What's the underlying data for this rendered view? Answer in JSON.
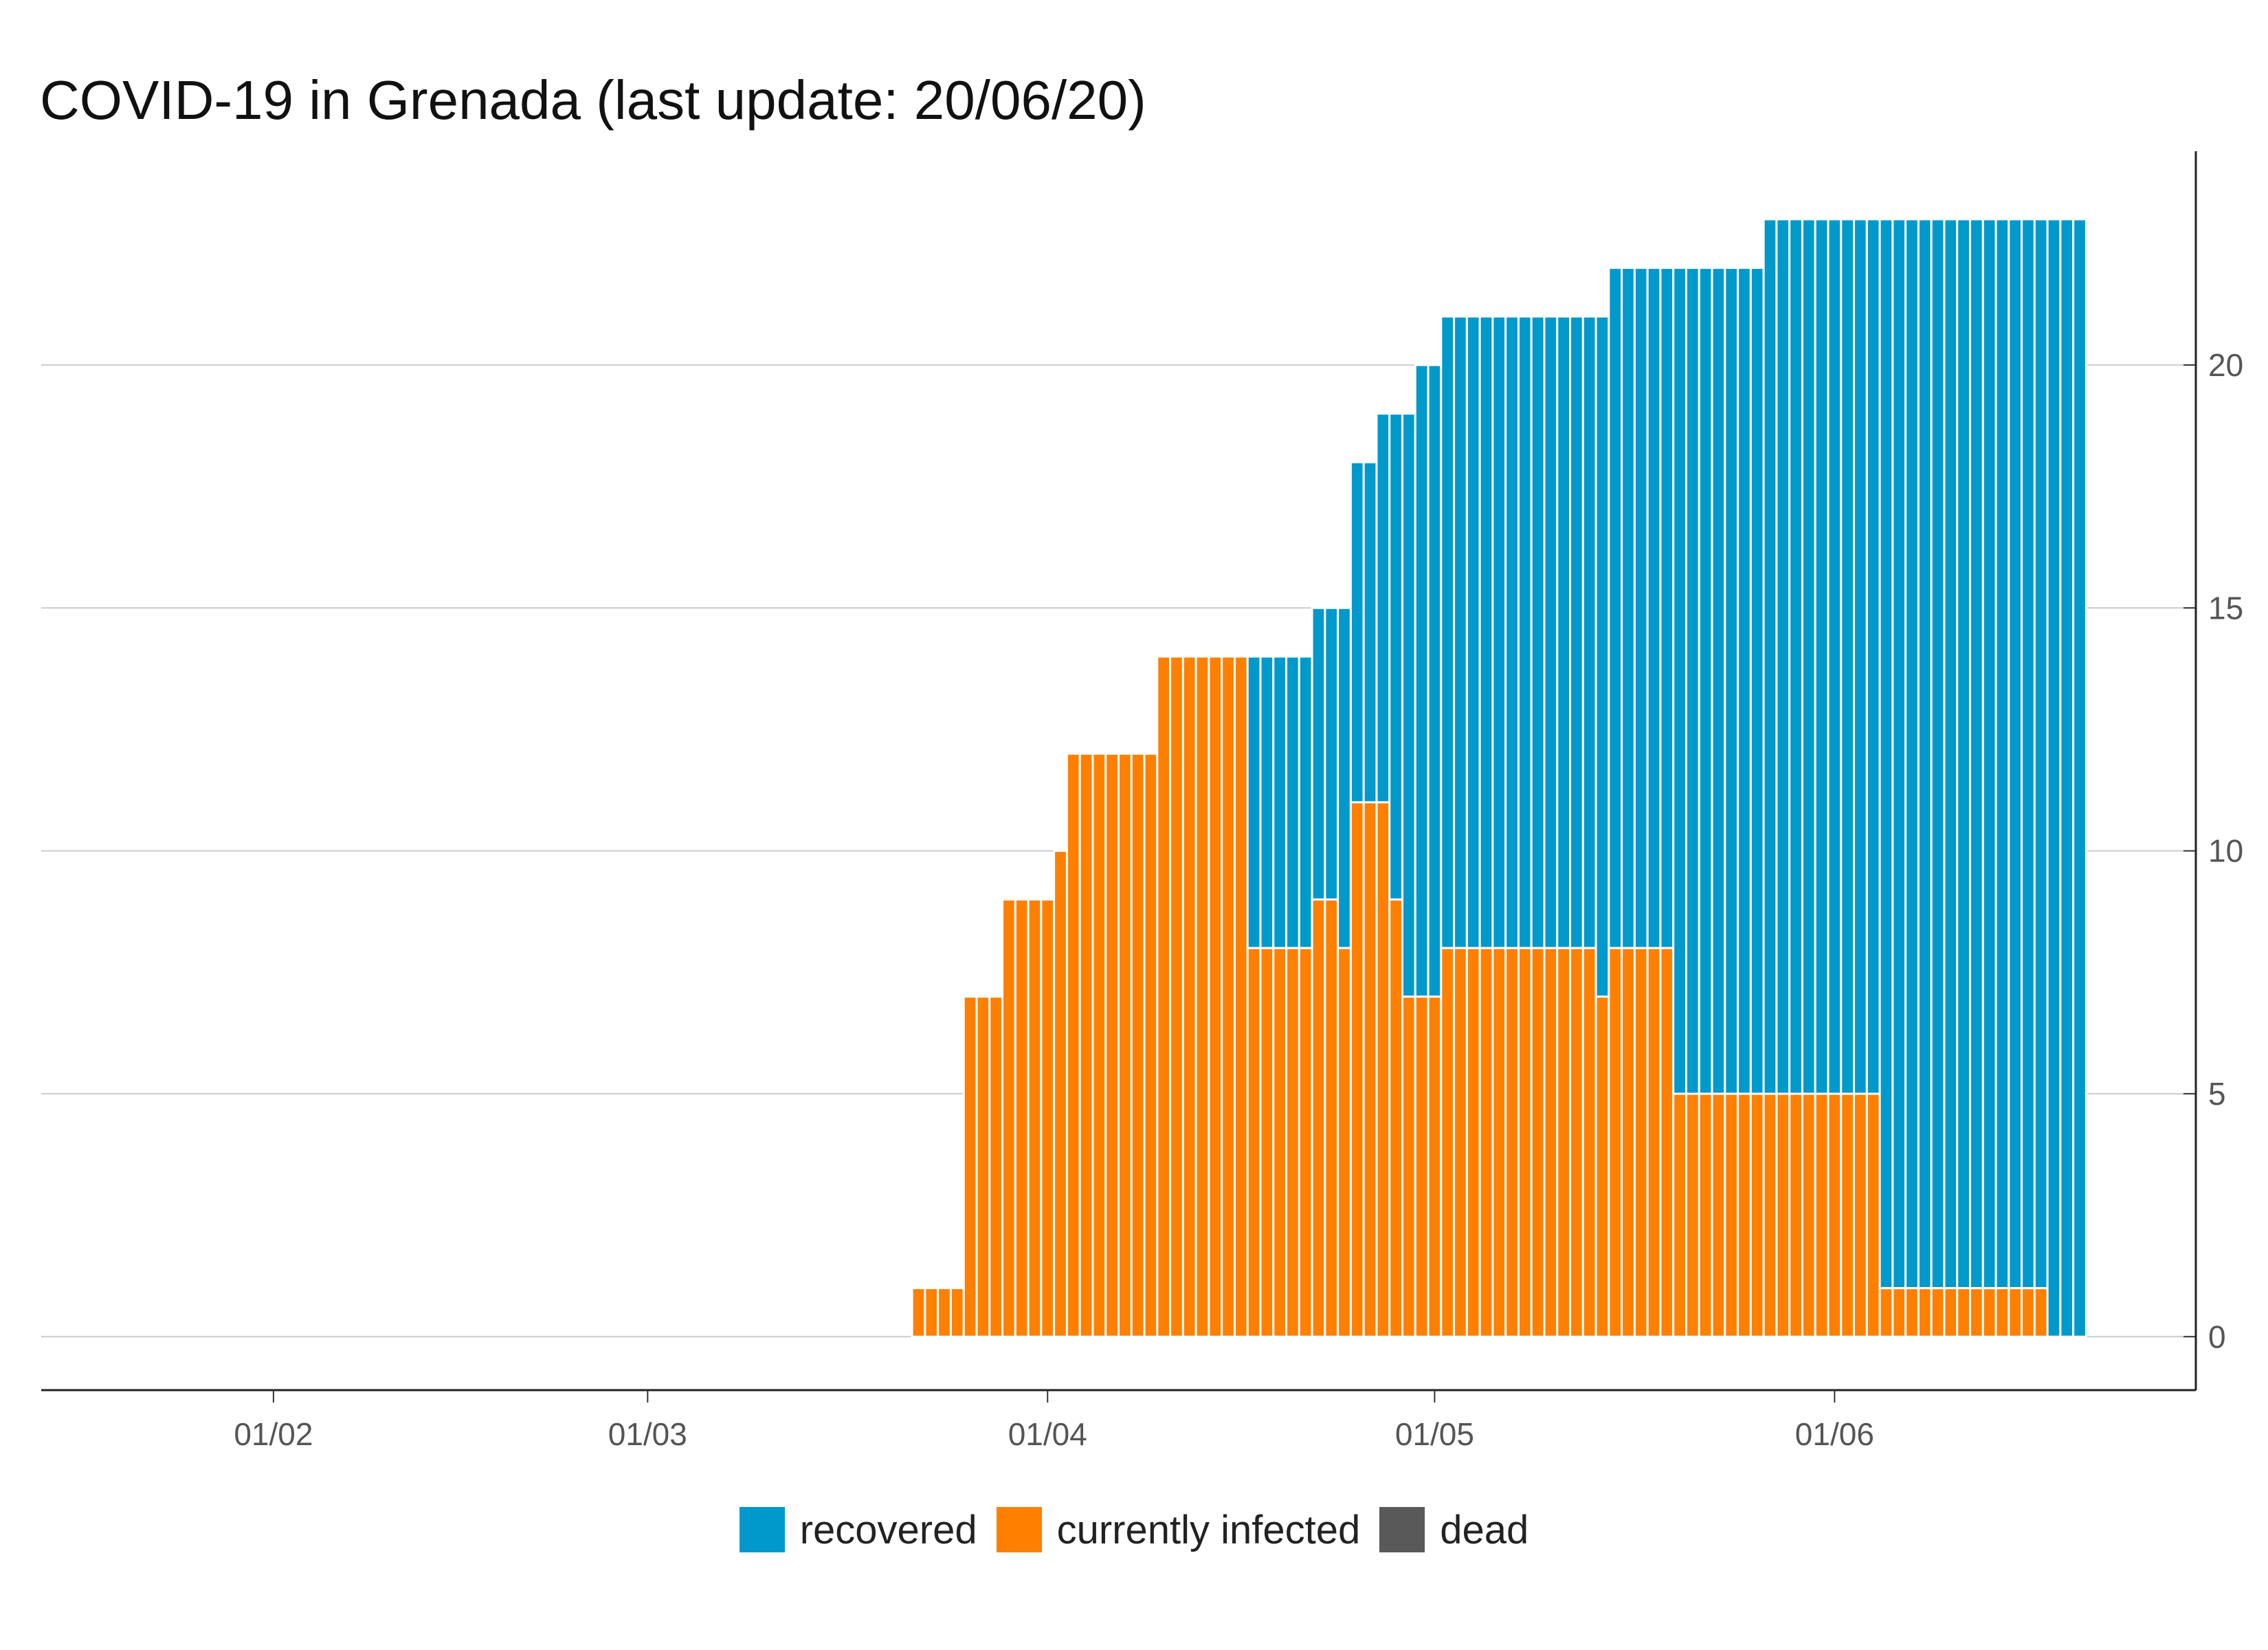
{
  "title": "COVID-19 in Grenada (last update: 20/06/20)",
  "chart_data": {
    "type": "bar",
    "stacked": true,
    "title": "COVID-19 in Grenada (last update: 20/06/20)",
    "xlabel": "",
    "ylabel": "",
    "date_range": [
      "2020-03-22",
      "2020-06-20"
    ],
    "x_axis_range": [
      "2020-01-14",
      "2020-06-29"
    ],
    "ylim": [
      -1.1,
      24.4
    ],
    "y_ticks": [
      0,
      5,
      10,
      15,
      20
    ],
    "y_axis_side": "right",
    "x_ticks": [
      {
        "date": "2020-02-01",
        "label": "01/02"
      },
      {
        "date": "2020-03-01",
        "label": "01/03"
      },
      {
        "date": "2020-04-01",
        "label": "01/04"
      },
      {
        "date": "2020-05-01",
        "label": "01/05"
      },
      {
        "date": "2020-06-01",
        "label": "01/06"
      }
    ],
    "grid": "horizontal",
    "legend_position": "bottom",
    "series": [
      {
        "name": "dead",
        "color": "#595959",
        "values": [
          0,
          0,
          0,
          0,
          0,
          0,
          0,
          0,
          0,
          0,
          0,
          0,
          0,
          0,
          0,
          0,
          0,
          0,
          0,
          0,
          0,
          0,
          0,
          0,
          0,
          0,
          0,
          0,
          0,
          0,
          0,
          0,
          0,
          0,
          0,
          0,
          0,
          0,
          0,
          0,
          0,
          0,
          0,
          0,
          0,
          0,
          0,
          0,
          0,
          0,
          0,
          0,
          0,
          0,
          0,
          0,
          0,
          0,
          0,
          0,
          0,
          0,
          0,
          0,
          0,
          0,
          0,
          0,
          0,
          0,
          0,
          0,
          0,
          0,
          0,
          0,
          0,
          0,
          0,
          0,
          0,
          0,
          0,
          0,
          0,
          0,
          0,
          0,
          0,
          0,
          0
        ]
      },
      {
        "name": "currently infected",
        "color": "#ff7f00",
        "values": [
          1,
          1,
          1,
          1,
          7,
          7,
          7,
          9,
          9,
          9,
          9,
          10,
          12,
          12,
          12,
          12,
          12,
          12,
          12,
          14,
          14,
          14,
          14,
          14,
          14,
          14,
          8,
          8,
          8,
          8,
          8,
          9,
          9,
          8,
          11,
          11,
          11,
          9,
          7,
          7,
          7,
          8,
          8,
          8,
          8,
          8,
          8,
          8,
          8,
          8,
          8,
          8,
          8,
          7,
          8,
          8,
          8,
          8,
          8,
          5,
          5,
          5,
          5,
          5,
          5,
          5,
          5,
          5,
          5,
          5,
          5,
          5,
          5,
          5,
          5,
          1,
          1,
          1,
          1,
          1,
          1,
          1,
          1,
          1,
          1,
          1,
          1,
          1,
          0,
          0,
          0
        ]
      },
      {
        "name": "recovered",
        "color": "#0099cc",
        "values": [
          0,
          0,
          0,
          0,
          0,
          0,
          0,
          0,
          0,
          0,
          0,
          0,
          0,
          0,
          0,
          0,
          0,
          0,
          0,
          0,
          0,
          0,
          0,
          0,
          0,
          0,
          6,
          6,
          6,
          6,
          6,
          6,
          6,
          7,
          7,
          7,
          8,
          10,
          12,
          13,
          13,
          13,
          13,
          13,
          13,
          13,
          13,
          13,
          13,
          13,
          13,
          13,
          13,
          14,
          14,
          14,
          14,
          14,
          14,
          17,
          17,
          17,
          17,
          17,
          17,
          17,
          18,
          18,
          18,
          18,
          18,
          18,
          18,
          18,
          18,
          22,
          22,
          22,
          22,
          22,
          22,
          22,
          22,
          22,
          22,
          22,
          22,
          22,
          23,
          23,
          23
        ]
      }
    ]
  },
  "legend": {
    "items": [
      {
        "label": "recovered",
        "color": "#0099cc"
      },
      {
        "label": "currently infected",
        "color": "#ff7f00"
      },
      {
        "label": "dead",
        "color": "#595959"
      }
    ]
  }
}
